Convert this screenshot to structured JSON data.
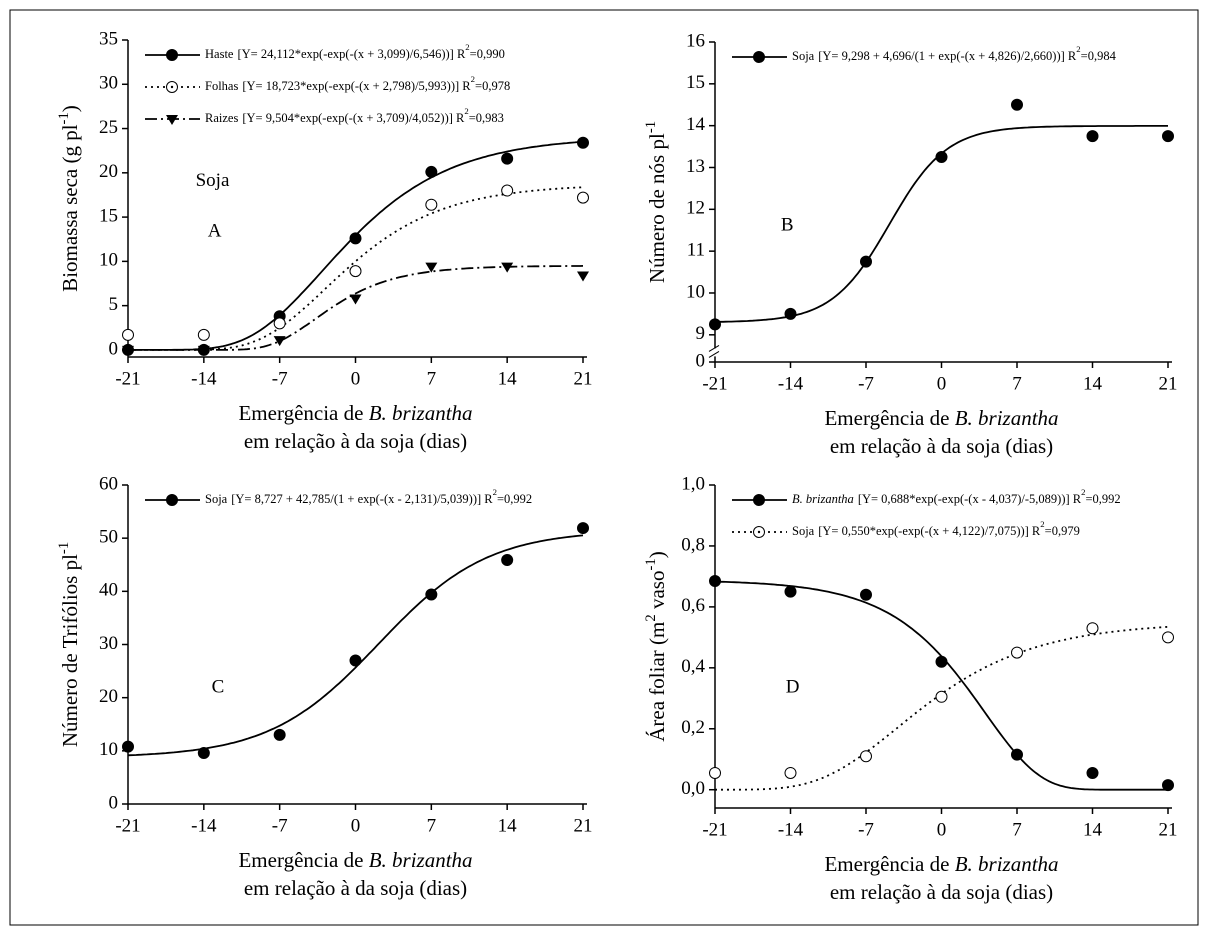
{
  "chart_data": [
    {
      "type": "scatter",
      "ylabel": [
        "Biomassa seca (g pl",
        "-1",
        ")"
      ],
      "xlabel": [
        [
          "Emergência de ",
          "B. brizantha"
        ],
        [
          "em relação à da soja (dias)"
        ]
      ],
      "x": [
        -21,
        -14,
        -7,
        0,
        7,
        14,
        21
      ],
      "xlim": [
        -21,
        21
      ],
      "xticks": [
        -21,
        -14,
        -7,
        0,
        7,
        14,
        21
      ],
      "ylim": [
        -0.8,
        35
      ],
      "yticks": [
        0,
        5,
        10,
        15,
        20,
        25,
        30,
        35
      ],
      "legend": "upper left",
      "annotations": [
        {
          "text": "Soja",
          "x": -13.2,
          "y": 19
        },
        {
          "text": "A",
          "x": -13,
          "y": 13.3
        }
      ],
      "series": [
        {
          "name": "Haste",
          "color": "#000000",
          "marker": "filled",
          "dash": "solid",
          "values": [
            0,
            0,
            3.8,
            12.6,
            20.1,
            21.6,
            23.4
          ],
          "fit": {
            "model": "gompertz",
            "a": 24.112,
            "x0": -3.099,
            "b": 6.546
          },
          "fit_label": [
            "[Y= 24,112*exp(-exp(-(x + 3,099)/6,546))] R",
            "2",
            "=0,990"
          ]
        },
        {
          "name": "Folhas",
          "color": "#000000",
          "marker": "open",
          "dash": "dotted",
          "values": [
            1.7,
            1.7,
            3.0,
            8.9,
            16.4,
            18.0,
            17.2
          ],
          "fit": {
            "model": "gompertz",
            "a": 18.723,
            "x0": -2.798,
            "b": 5.993
          },
          "fit_label": [
            "[Y= 18,723*exp(-exp(-(x + 2,798)/5,993))] R",
            "2",
            "=0,978"
          ]
        },
        {
          "name": "Raizes",
          "color": "#000000",
          "marker": "triangle",
          "dash": "dashdot",
          "values": [
            0,
            0,
            1.1,
            5.8,
            9.4,
            9.4,
            8.4
          ],
          "fit": {
            "model": "gompertz",
            "a": 9.504,
            "x0": -3.709,
            "b": 4.052
          },
          "fit_label": [
            "[Y= 9,504*exp(-exp(-(x + 3,709)/4,052))] R",
            "2",
            "=0,983"
          ]
        }
      ]
    },
    {
      "type": "scatter",
      "ylabel": [
        "Número de nós pl",
        "-1"
      ],
      "xlabel": [
        [
          "Emergência de ",
          "B. brizantha"
        ],
        [
          "em relação à da soja (dias)"
        ]
      ],
      "x": [
        -21,
        -14,
        -7,
        0,
        7,
        14,
        21
      ],
      "xlim": [
        -21,
        21
      ],
      "xticks": [
        -21,
        -14,
        -7,
        0,
        7,
        14,
        21
      ],
      "ylim": [
        8.35,
        16
      ],
      "yticks": [
        9,
        10,
        11,
        12,
        13,
        14,
        15,
        16
      ],
      "y_break_tick": 0,
      "legend": "upper left",
      "annotations": [
        {
          "text": "B",
          "x": -14.3,
          "y": 11.6
        }
      ],
      "series": [
        {
          "name": "Soja",
          "color": "#000000",
          "marker": "filled",
          "dash": "solid",
          "values": [
            9.25,
            9.5,
            10.75,
            13.25,
            14.5,
            13.75,
            13.75
          ],
          "fit": {
            "model": "logistic",
            "y0": 9.298,
            "a": 4.696,
            "x0": -4.826,
            "b": 2.66
          },
          "fit_label": [
            "[Y= 9,298 + 4,696/(1 + exp(-(x + 4,826)/2,660))] R",
            "2",
            "=0,984"
          ]
        }
      ]
    },
    {
      "type": "scatter",
      "ylabel": [
        "Número de Trifólios pl",
        "-1"
      ],
      "xlabel": [
        [
          "Emergência de ",
          "B. brizantha"
        ],
        [
          "em relação à da soja  (dias)"
        ]
      ],
      "x": [
        -21,
        -14,
        -7,
        0,
        7,
        14,
        21
      ],
      "xlim": [
        -21,
        21
      ],
      "xticks": [
        -21,
        -14,
        -7,
        0,
        7,
        14,
        21
      ],
      "ylim": [
        0,
        60
      ],
      "yticks": [
        0,
        10,
        20,
        30,
        40,
        50,
        60
      ],
      "legend": "upper left",
      "annotations": [
        {
          "text": "C",
          "x": -12.7,
          "y": 21.8
        }
      ],
      "series": [
        {
          "name": "Soja",
          "color": "#000000",
          "marker": "filled",
          "dash": "solid",
          "values": [
            10.8,
            9.6,
            13.0,
            27.0,
            39.4,
            45.9,
            51.9
          ],
          "fit": {
            "model": "logistic",
            "y0": 8.727,
            "a": 42.785,
            "x0": 2.131,
            "b": 5.039
          },
          "fit_label": [
            "[Y= 8,727 + 42,785/(1 + exp(-(x - 2,131)/5,039))] R",
            "2",
            "=0,992"
          ]
        }
      ]
    },
    {
      "type": "scatter",
      "ylabel": [
        "Área foliar (m",
        "2",
        " vaso",
        "-1",
        ")"
      ],
      "xlabel": [
        [
          "Emergência de ",
          "B. brizantha"
        ],
        [
          "em relação à da soja  (dias)"
        ]
      ],
      "x": [
        -21,
        -14,
        -7,
        0,
        7,
        14,
        21
      ],
      "xlim": [
        -21,
        21
      ],
      "xticks": [
        -21,
        -14,
        -7,
        0,
        7,
        14,
        21
      ],
      "ylim": [
        -0.06,
        1.0
      ],
      "yticks": [
        {
          "value": 0,
          "label": "0,0"
        },
        {
          "value": 0.2,
          "label": "0,2"
        },
        {
          "value": 0.4,
          "label": "0,4"
        },
        {
          "value": 0.6,
          "label": "0,6"
        },
        {
          "value": 0.8,
          "label": "0,8"
        },
        {
          "value": 1.0,
          "label": "1,0"
        }
      ],
      "legend": "upper left",
      "annotations": [
        {
          "text": "D",
          "x": -13.8,
          "y": 0.334
        }
      ],
      "series": [
        {
          "name": "B. brizantha",
          "name_italic": true,
          "color": "#000000",
          "marker": "filled",
          "dash": "solid",
          "values": [
            0.685,
            0.65,
            0.64,
            0.42,
            0.115,
            0.055,
            0.015
          ],
          "fit": {
            "model": "gompertz",
            "a": 0.688,
            "x0": 4.037,
            "b": -5.089
          },
          "fit_label": [
            "[Y= 0,688*exp(-exp(-(x - 4,037)/-5,089))] R",
            "2",
            "=0,992"
          ]
        },
        {
          "name": "Soja",
          "color": "#000000",
          "marker": "open",
          "dash": "dotted",
          "values": [
            0.055,
            0.055,
            0.11,
            0.305,
            0.45,
            0.53,
            0.5
          ],
          "fit": {
            "model": "gompertz",
            "a": 0.55,
            "x0": -4.122,
            "b": 7.075
          },
          "fit_label": [
            "[Y= 0,550*exp(-exp(-(x + 4,122)/7,075))] R",
            "2",
            "=0,979"
          ]
        }
      ]
    }
  ]
}
